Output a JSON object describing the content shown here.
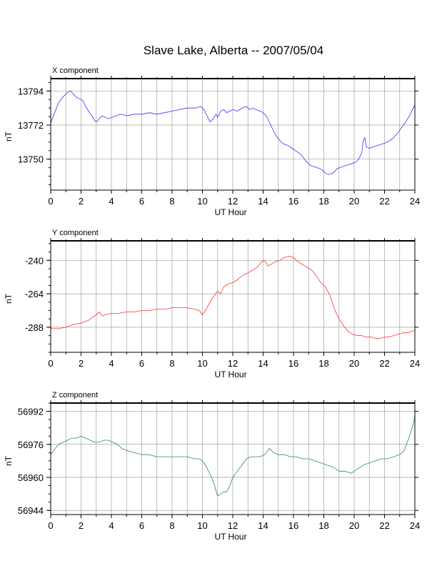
{
  "title": "Slave Lake, Alberta -- 2007/05/04",
  "chart_data": [
    {
      "type": "line",
      "panel_label": "X component",
      "xlabel": "UT Hour",
      "ylabel": "nT",
      "xlim": [
        0,
        24
      ],
      "ylim": [
        13730,
        13802
      ],
      "x_ticks": [
        "0",
        "2",
        "4",
        "6",
        "8",
        "10",
        "12",
        "14",
        "16",
        "18",
        "20",
        "22",
        "24"
      ],
      "y_ticks": [
        13750,
        13772,
        13794
      ],
      "grid": true,
      "color": "#3333ff",
      "series": [
        {
          "x": [
            0.0,
            0.1,
            0.3,
            0.5,
            0.7,
            0.9,
            1.1,
            1.3,
            1.5,
            1.7,
            1.9,
            2.1,
            2.3,
            2.5,
            2.7,
            2.9,
            3.0,
            3.2,
            3.4,
            3.6,
            3.8,
            4.0,
            4.3,
            4.6,
            5.0,
            5.5,
            6.0,
            6.5,
            7.0,
            7.5,
            8.0,
            8.5,
            9.0,
            9.5,
            9.9,
            10.1,
            10.3,
            10.5,
            10.7,
            10.9,
            11.0,
            11.2,
            11.4,
            11.6,
            11.8,
            12.0,
            12.3,
            12.6,
            12.9,
            13.1,
            13.3,
            13.5,
            13.8,
            14.0,
            14.2,
            14.5,
            14.8,
            15.0,
            15.3,
            15.6,
            15.9,
            16.2,
            16.5,
            16.8,
            17.1,
            17.4,
            17.7,
            17.9,
            18.1,
            18.3,
            18.6,
            18.9,
            19.2,
            19.5,
            19.8,
            20.1,
            20.3,
            20.5,
            20.6,
            20.7,
            20.8,
            21.0,
            21.3,
            21.6,
            21.9,
            22.2,
            22.5,
            22.8,
            23.1,
            23.4,
            23.7,
            24.0
          ],
          "y": [
            13773,
            13776,
            13781,
            13786,
            13789,
            13791,
            13793,
            13794,
            13792,
            13790,
            13789,
            13788,
            13784,
            13781,
            13778,
            13775,
            13774,
            13776,
            13778,
            13777,
            13776,
            13777,
            13778,
            13779,
            13778,
            13779,
            13779,
            13780,
            13779,
            13780,
            13781,
            13782,
            13783,
            13783,
            13784,
            13782,
            13778,
            13774,
            13776,
            13779,
            13777,
            13781,
            13782,
            13780,
            13781,
            13782,
            13781,
            13783,
            13784,
            13782,
            13783,
            13782,
            13781,
            13780,
            13778,
            13772,
            13766,
            13763,
            13760,
            13759,
            13757,
            13755,
            13753,
            13749,
            13746,
            13745,
            13744,
            13743,
            13741,
            13740,
            13741,
            13744,
            13745,
            13746,
            13747,
            13748,
            13750,
            13754,
            13762,
            13764,
            13758,
            13757,
            13758,
            13759,
            13760,
            13761,
            13763,
            13766,
            13770,
            13774,
            13779,
            13785
          ]
        }
      ]
    },
    {
      "type": "line",
      "panel_label": "Y component",
      "xlabel": "UT Hour",
      "ylabel": "nT",
      "xlim": [
        0,
        24
      ],
      "ylim": [
        -306,
        -226
      ],
      "x_ticks": [
        "0",
        "2",
        "4",
        "6",
        "8",
        "10",
        "12",
        "14",
        "16",
        "18",
        "20",
        "22",
        "24"
      ],
      "y_ticks": [
        -240,
        -264,
        -288
      ],
      "grid": true,
      "color": "#ff3333",
      "series": [
        {
          "x": [
            0.0,
            0.5,
            1.0,
            1.5,
            2.0,
            2.5,
            3.0,
            3.2,
            3.4,
            3.6,
            4.0,
            4.5,
            5.0,
            5.5,
            6.0,
            6.5,
            7.0,
            7.5,
            8.0,
            8.5,
            9.0,
            9.5,
            9.8,
            10.0,
            10.2,
            10.4,
            10.6,
            10.8,
            11.0,
            11.2,
            11.4,
            11.7,
            12.0,
            12.3,
            12.6,
            13.0,
            13.3,
            13.6,
            13.9,
            14.1,
            14.3,
            14.5,
            14.8,
            15.1,
            15.4,
            15.7,
            16.0,
            16.3,
            16.6,
            16.9,
            17.2,
            17.5,
            17.8,
            18.1,
            18.4,
            18.7,
            19.0,
            19.3,
            19.6,
            19.9,
            20.2,
            20.5,
            20.8,
            21.1,
            21.4,
            21.7,
            22.0,
            22.3,
            22.6,
            22.9,
            23.2,
            23.5,
            23.8,
            24.0
          ],
          "y": [
            -289,
            -289,
            -288,
            -286,
            -285,
            -283,
            -279,
            -277,
            -280,
            -279,
            -278,
            -278,
            -277,
            -277,
            -276,
            -276,
            -275,
            -275,
            -274,
            -274,
            -274,
            -275,
            -276,
            -279,
            -276,
            -272,
            -268,
            -265,
            -262,
            -264,
            -259,
            -257,
            -256,
            -254,
            -251,
            -249,
            -247,
            -245,
            -241,
            -240,
            -244,
            -243,
            -241,
            -240,
            -238,
            -237,
            -238,
            -241,
            -243,
            -245,
            -247,
            -251,
            -256,
            -259,
            -265,
            -275,
            -282,
            -287,
            -291,
            -293,
            -294,
            -294,
            -295,
            -295,
            -296,
            -296,
            -295,
            -295,
            -294,
            -293,
            -292,
            -292,
            -291,
            -290
          ]
        }
      ]
    },
    {
      "type": "line",
      "panel_label": "Z component",
      "xlabel": "UT Hour",
      "ylabel": "nT",
      "xlim": [
        0,
        24
      ],
      "ylim": [
        56942,
        56996
      ],
      "x_ticks": [
        "0",
        "2",
        "4",
        "6",
        "8",
        "10",
        "12",
        "14",
        "16",
        "18",
        "20",
        "22",
        "24"
      ],
      "y_ticks": [
        56944,
        56960,
        56976,
        56992
      ],
      "grid": true,
      "color": "#2e8b57",
      "series": [
        {
          "x": [
            0.0,
            0.2,
            0.5,
            0.8,
            1.1,
            1.4,
            1.7,
            2.0,
            2.3,
            2.6,
            2.9,
            3.2,
            3.5,
            3.8,
            4.1,
            4.4,
            4.7,
            5.0,
            5.5,
            6.0,
            6.5,
            7.0,
            7.5,
            8.0,
            8.5,
            9.0,
            9.5,
            9.8,
            10.0,
            10.2,
            10.4,
            10.6,
            10.8,
            11.0,
            11.2,
            11.4,
            11.6,
            11.8,
            12.0,
            12.3,
            12.6,
            12.9,
            13.2,
            13.5,
            13.8,
            14.1,
            14.4,
            14.7,
            15.0,
            15.4,
            15.8,
            16.2,
            16.6,
            17.0,
            17.4,
            17.8,
            18.2,
            18.6,
            19.0,
            19.4,
            19.8,
            20.2,
            20.6,
            21.0,
            21.4,
            21.8,
            22.2,
            22.6,
            23.0,
            23.3,
            23.6,
            23.9,
            24.0
          ],
          "y": [
            56971,
            56973,
            56976,
            56977,
            56978,
            56979,
            56979,
            56980,
            56979,
            56978,
            56977,
            56977,
            56978,
            56978,
            56977,
            56976,
            56974,
            56973,
            56972,
            56971,
            56971,
            56970,
            56970,
            56970,
            56970,
            56970,
            56969,
            56969,
            56968,
            56966,
            56963,
            56960,
            56956,
            56951,
            56952,
            56953,
            56953,
            56956,
            56960,
            56963,
            56966,
            56969,
            56970,
            56970,
            56970,
            56971,
            56974,
            56972,
            56971,
            56971,
            56970,
            56970,
            56969,
            56969,
            56968,
            56967,
            56966,
            56965,
            56963,
            56963,
            56962,
            56964,
            56966,
            56967,
            56968,
            56969,
            56969,
            56970,
            56971,
            56973,
            56979,
            56986,
            56990
          ]
        }
      ]
    }
  ]
}
